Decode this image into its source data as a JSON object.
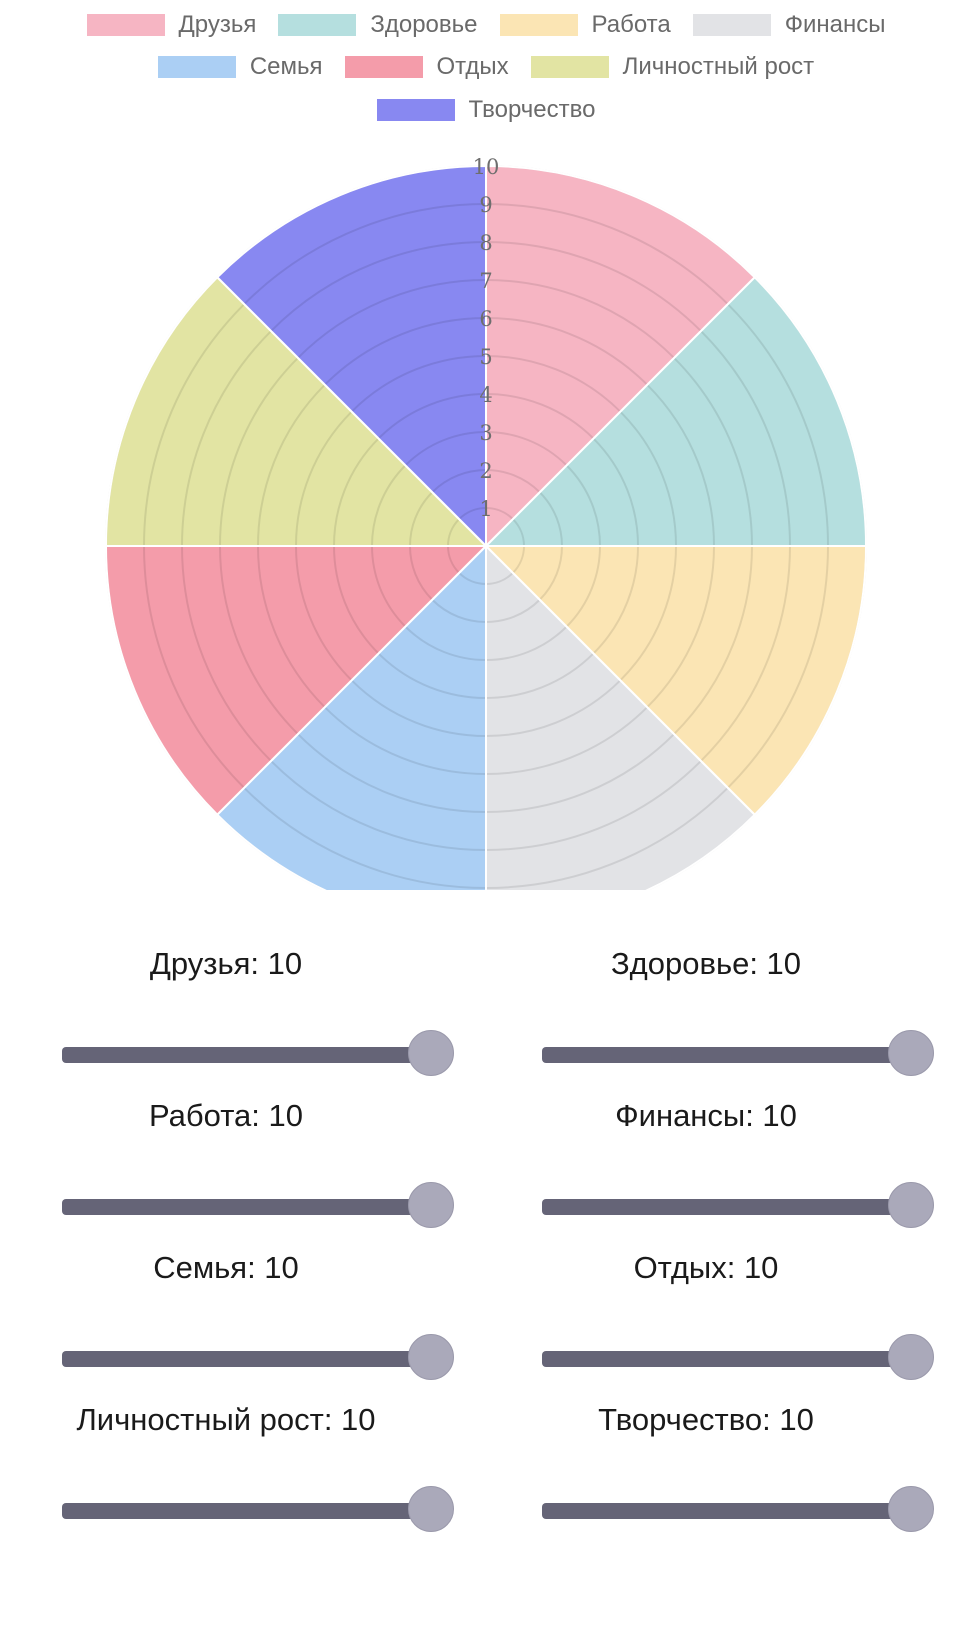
{
  "chart_data": {
    "type": "polarArea",
    "categories": [
      "Друзья",
      "Здоровье",
      "Работа",
      "Финансы",
      "Семья",
      "Отдых",
      "Личностный рост",
      "Творчество"
    ],
    "values": [
      10,
      10,
      10,
      10,
      10,
      10,
      10,
      10
    ],
    "colors": [
      "#f6b5c3",
      "#b5dfdf",
      "#fbe5b4",
      "#e2e3e6",
      "#abcff4",
      "#f49caa",
      "#e2e4a3",
      "#8888f1"
    ],
    "rlim": [
      0,
      10
    ],
    "r_ticks": [
      1,
      2,
      3,
      4,
      5,
      6,
      7,
      8,
      9,
      10
    ],
    "legend_position": "top",
    "grid": true
  },
  "legend": {
    "rows": [
      [
        {
          "label": "Друзья",
          "color": "#f6b5c3"
        },
        {
          "label": "Здоровье",
          "color": "#b5dfdf"
        },
        {
          "label": "Работа",
          "color": "#fbe5b4"
        },
        {
          "label": "Финансы",
          "color": "#e2e3e6"
        }
      ],
      [
        {
          "label": "Семья",
          "color": "#abcff4"
        },
        {
          "label": "Отдых",
          "color": "#f49caa"
        },
        {
          "label": "Личностный рост",
          "color": "#e2e4a3"
        }
      ],
      [
        {
          "label": "Творчество",
          "color": "#8888f1"
        }
      ]
    ]
  },
  "sliders": [
    {
      "label": "Друзья: 10",
      "value": 10,
      "min": 0,
      "max": 10
    },
    {
      "label": "Здоровье: 10",
      "value": 10,
      "min": 0,
      "max": 10
    },
    {
      "label": "Работа: 10",
      "value": 10,
      "min": 0,
      "max": 10
    },
    {
      "label": "Финансы: 10",
      "value": 10,
      "min": 0,
      "max": 10
    },
    {
      "label": "Семья: 10",
      "value": 10,
      "min": 0,
      "max": 10
    },
    {
      "label": "Отдых: 10",
      "value": 10,
      "min": 0,
      "max": 10
    },
    {
      "label": "Личностный рост: 10",
      "value": 10,
      "min": 0,
      "max": 10
    },
    {
      "label": "Творчество: 10",
      "value": 10,
      "min": 0,
      "max": 10
    }
  ]
}
